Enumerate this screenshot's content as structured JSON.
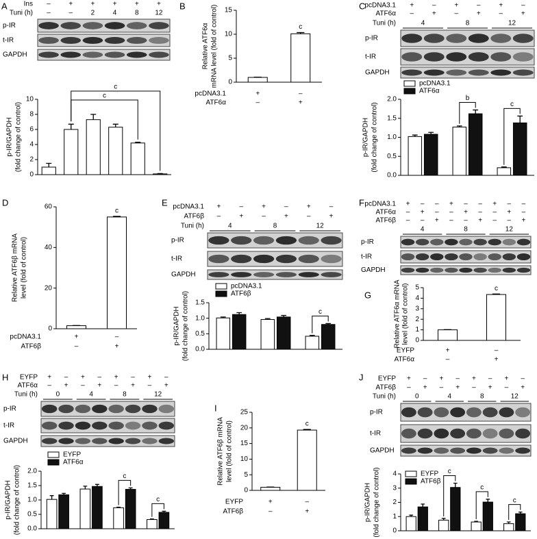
{
  "chart_data": [
    {
      "type": "bar",
      "panel": "A",
      "ylabel": [
        "p-IR/GAPDH",
        "(fold change of control)"
      ],
      "ylim": [
        0,
        10
      ],
      "yticks": [
        0,
        2,
        4,
        6,
        8,
        10
      ],
      "series": [
        {
          "color": "#ffffff",
          "values": [
            1.0,
            6.0,
            7.3,
            6.3,
            4.2,
            0.1
          ],
          "errors": [
            0.5,
            0.7,
            0.7,
            0.4,
            0.1,
            0.05
          ]
        }
      ],
      "annotations": [
        null,
        null,
        null,
        null,
        "c",
        "c"
      ],
      "blot": {
        "header_rows": [
          {
            "label": "Ins",
            "cells": [
              "–",
              "+",
              "+",
              "+",
              "+",
              "+"
            ]
          },
          {
            "label": "Tuni (h)",
            "cells": [
              "–",
              "–",
              "2",
              "4",
              "8",
              "12"
            ]
          }
        ],
        "bands": [
          "p-IR",
          "t-IR",
          "GAPDH"
        ]
      }
    },
    {
      "type": "bar",
      "panel": "B",
      "ylabel": [
        "Relative ATF6α",
        "mRNA level (fold of control)"
      ],
      "ylim": [
        0,
        15
      ],
      "yticks": [
        0,
        5,
        10,
        15
      ],
      "series": [
        {
          "color": "#ffffff",
          "values": [
            1.0,
            10.1
          ],
          "errors": [
            0.05,
            0.25
          ]
        }
      ],
      "annotations": [
        null,
        "c"
      ],
      "conditions": [
        {
          "label": "pcDNA3.1",
          "cells": [
            "+",
            "–"
          ]
        },
        {
          "label": "ATF6α",
          "cells": [
            "–",
            "+"
          ]
        }
      ]
    },
    {
      "type": "bar",
      "panel": "C",
      "ylabel": [
        "p-IR/GAPDH",
        "(fold change of control)"
      ],
      "ylim": [
        0,
        2
      ],
      "yticks": [
        {
          "value": 0,
          "label": "0.0"
        },
        0.5,
        {
          "value": 1,
          "label": "1.0"
        },
        1.5,
        {
          "value": 2,
          "label": "2.0"
        }
      ],
      "series": [
        {
          "name": "pcDNA3.1",
          "color": "#ffffff",
          "values": [
            1.02,
            1.27,
            0.2
          ],
          "errors": [
            0.04,
            0.03,
            0.02
          ]
        },
        {
          "name": "ATF6α",
          "color": "#111111",
          "values": [
            1.08,
            1.62,
            1.38
          ],
          "errors": [
            0.05,
            0.1,
            0.18
          ]
        }
      ],
      "annotations": [
        null,
        "b",
        "c"
      ],
      "blot": {
        "header_rows": [
          {
            "label": "pcDNA3.1",
            "cells": [
              "+",
              "–",
              "+",
              "–",
              "+",
              "–"
            ]
          },
          {
            "label": "ATF6α",
            "cells": [
              "–",
              "+",
              "–",
              "+",
              "–",
              "+"
            ]
          },
          {
            "label": "Tuni (h)",
            "cells": [
              "4",
              "8",
              "12"
            ]
          }
        ],
        "bands": [
          "p-IR",
          "t-IR",
          "GAPDH"
        ]
      }
    },
    {
      "type": "bar",
      "panel": "D",
      "ylabel": [
        "Relative ATF6β mRNA",
        "level (fold of control)"
      ],
      "ylim": [
        0,
        60
      ],
      "yticks": [
        0,
        20,
        40,
        60
      ],
      "series": [
        {
          "color": "#ffffff",
          "values": [
            1.5,
            55
          ],
          "errors": [
            0.1,
            0.3
          ]
        }
      ],
      "annotations": [
        null,
        "c"
      ],
      "conditions": [
        {
          "label": "pcDNA3.1",
          "cells": [
            "+",
            "–"
          ]
        },
        {
          "label": "ATF6β",
          "cells": [
            "–",
            "+"
          ]
        }
      ]
    },
    {
      "type": "bar",
      "panel": "E",
      "ylabel": [
        "p-IR/GAPDH",
        "(fold change of control)"
      ],
      "ylim": [
        0,
        1.5
      ],
      "yticks": [
        {
          "value": 0,
          "label": "0.0"
        },
        0.5,
        {
          "value": 1,
          "label": "1.0"
        },
        1.5
      ],
      "series": [
        {
          "name": "pcDNA3.1",
          "color": "#ffffff",
          "values": [
            1.01,
            0.96,
            0.42
          ],
          "errors": [
            0.03,
            0.03,
            0.03
          ]
        },
        {
          "name": "ATF6β",
          "color": "#111111",
          "values": [
            1.12,
            1.04,
            0.8
          ],
          "errors": [
            0.06,
            0.05,
            0.03
          ]
        }
      ],
      "annotations": [
        null,
        null,
        "c"
      ],
      "blot": {
        "header_rows": [
          {
            "label": "pcDNA3.1",
            "cells": [
              "+",
              "–",
              "+",
              "–",
              "+",
              "–"
            ]
          },
          {
            "label": "ATF6β",
            "cells": [
              "–",
              "+",
              "–",
              "+",
              "–",
              "+"
            ]
          },
          {
            "label": "Tuni (h)",
            "cells": [
              "4",
              "8",
              "12"
            ]
          }
        ],
        "bands": [
          "p-IR",
          "t-IR",
          "GAPDH"
        ]
      }
    },
    {
      "type": "bar",
      "panel": "G",
      "ylabel": [
        "Relative ATF6α mRNA",
        "level (fold of control)"
      ],
      "ylim": [
        0,
        5
      ],
      "yticks": [
        0,
        1,
        2,
        3,
        4,
        5
      ],
      "series": [
        {
          "color": "#ffffff",
          "values": [
            1.0,
            4.35
          ],
          "errors": [
            0.02,
            0.05
          ]
        }
      ],
      "annotations": [
        null,
        "c"
      ],
      "conditions": [
        {
          "label": "EYFP",
          "cells": [
            "+",
            "–"
          ]
        },
        {
          "label": "ATF6α",
          "cells": [
            "–",
            "+"
          ]
        }
      ]
    },
    {
      "type": "bar",
      "panel": "H",
      "ylabel": [
        "p-IR/GAPDH",
        "(fold change of control)"
      ],
      "ylim": [
        0,
        2
      ],
      "yticks": [
        {
          "value": 0,
          "label": "0.0"
        },
        0.5,
        {
          "value": 1,
          "label": "1.0"
        },
        1.5,
        {
          "value": 2,
          "label": "2.0"
        }
      ],
      "series": [
        {
          "name": "EYFP",
          "color": "#ffffff",
          "values": [
            1.02,
            1.38,
            0.73,
            0.32
          ],
          "errors": [
            0.13,
            0.1,
            0.02,
            0.02
          ]
        },
        {
          "name": "ATF6α",
          "color": "#111111",
          "values": [
            1.18,
            1.47,
            1.37,
            0.57
          ],
          "errors": [
            0.05,
            0.07,
            0.05,
            0.04
          ]
        }
      ],
      "annotations": [
        null,
        null,
        "c",
        "c"
      ],
      "blot": {
        "header_rows": [
          {
            "label": "EYFP",
            "cells": [
              "+",
              "–",
              "+",
              "–",
              "+",
              "–",
              "+",
              "–"
            ]
          },
          {
            "label": "ATF6α",
            "cells": [
              "–",
              "+",
              "–",
              "+",
              "–",
              "+",
              "–",
              "+"
            ]
          },
          {
            "label": "Tuni (h)",
            "cells": [
              "0",
              "4",
              "8",
              "12"
            ]
          }
        ],
        "bands": [
          "p-IR",
          "t-IR",
          "GAPDH"
        ]
      }
    },
    {
      "type": "bar",
      "panel": "I",
      "ylabel": [
        "Relative ATF6β mRNA",
        "level (fold of control)"
      ],
      "ylim": [
        0,
        25
      ],
      "yticks": [
        0,
        5,
        10,
        15,
        20,
        25
      ],
      "series": [
        {
          "color": "#ffffff",
          "values": [
            1.0,
            19.3
          ],
          "errors": [
            0.05,
            0.2
          ]
        }
      ],
      "annotations": [
        null,
        "c"
      ],
      "conditions": [
        {
          "label": "EYFP",
          "cells": [
            "+",
            "–"
          ]
        },
        {
          "label": "ATF6β",
          "cells": [
            "–",
            "+"
          ]
        }
      ]
    },
    {
      "type": "bar",
      "panel": "J",
      "ylabel": [
        "p-IR/GAPDH",
        "(fold change of control)"
      ],
      "ylim": [
        0,
        4
      ],
      "yticks": [
        0,
        1,
        2,
        3,
        4
      ],
      "series": [
        {
          "name": "EYFP",
          "color": "#ffffff",
          "values": [
            1.0,
            0.75,
            0.62,
            0.5
          ],
          "errors": [
            0.1,
            0.12,
            0.05,
            0.12
          ]
        },
        {
          "name": "ATF6β",
          "color": "#111111",
          "values": [
            1.68,
            3.05,
            2.02,
            1.2
          ],
          "errors": [
            0.2,
            0.3,
            0.2,
            0.12
          ]
        }
      ],
      "annotations": [
        null,
        "c",
        "c",
        "c"
      ],
      "blot": {
        "header_rows": [
          {
            "label": "EYFP",
            "cells": [
              "+",
              "–",
              "+",
              "–",
              "+",
              "–",
              "+",
              "–"
            ]
          },
          {
            "label": "ATF6β",
            "cells": [
              "–",
              "+",
              "–",
              "+",
              "–",
              "+",
              "–",
              "+"
            ]
          },
          {
            "label": "Tuni (h)",
            "cells": [
              "0",
              "4",
              "8",
              "12"
            ]
          }
        ],
        "bands": [
          "p-IR",
          "t-IR",
          "GAPDH"
        ]
      }
    }
  ],
  "blot_panel": {
    "panel": "F",
    "header_rows": [
      {
        "label": "pcDNA3.1",
        "cells": [
          "+",
          "–",
          "–",
          "+",
          "–",
          "–",
          "+",
          "–",
          "–"
        ]
      },
      {
        "label": "ATF6α",
        "cells": [
          "–",
          "+",
          "–",
          "–",
          "+",
          "–",
          "–",
          "+",
          "–"
        ]
      },
      {
        "label": "ATF6β",
        "cells": [
          "–",
          "–",
          "+",
          "–",
          "–",
          "+",
          "–",
          "–",
          "+"
        ]
      },
      {
        "label": null,
        "cells": [
          "4",
          "8",
          "12"
        ]
      }
    ],
    "bands": [
      "p-IR",
      "t-IR",
      "GAPDH"
    ]
  }
}
